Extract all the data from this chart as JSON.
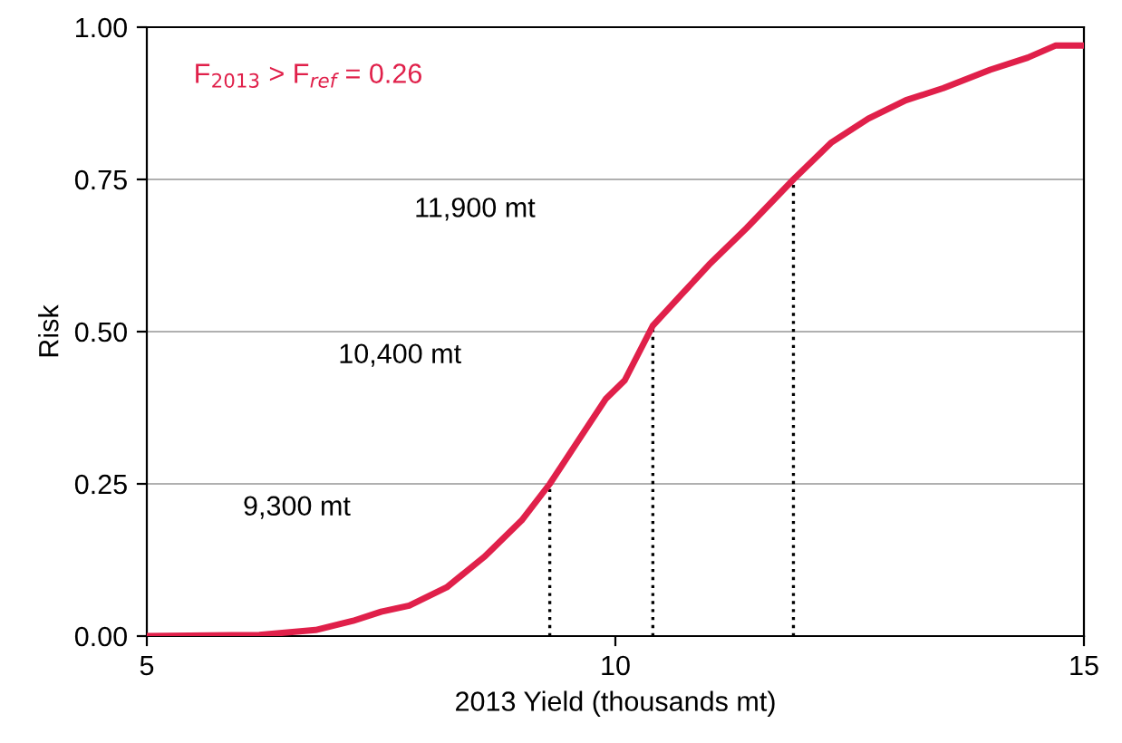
{
  "chart_data": {
    "type": "line",
    "xlabel": "2013 Yield (thousands mt)",
    "ylabel": "Risk",
    "xlim": [
      5,
      15
    ],
    "xticks": [
      5,
      10,
      15
    ],
    "ylim": [
      0,
      1
    ],
    "yticks": [
      {
        "value": 0,
        "label": "0.00"
      },
      {
        "value": 0.25,
        "label": "0.25"
      },
      {
        "value": 0.5,
        "label": "0.50"
      },
      {
        "value": 0.75,
        "label": "0.75"
      },
      {
        "value": 1,
        "label": "1.00"
      }
    ],
    "grid": "y",
    "line_style": "solid",
    "marker": "none",
    "series": [
      {
        "color": "#e0204a",
        "x": [
          5,
          6.2,
          6.8,
          7.2,
          7.5,
          7.8,
          8.2,
          8.6,
          9.0,
          9.3,
          9.6,
          9.9,
          10.1,
          10.4,
          10.7,
          11.0,
          11.4,
          11.9,
          12.3,
          12.7,
          13.1,
          13.5,
          14.0,
          14.4,
          14.7,
          15
        ],
        "values": [
          0,
          0.002,
          0.01,
          0.025,
          0.04,
          0.05,
          0.08,
          0.13,
          0.19,
          0.25,
          0.32,
          0.39,
          0.42,
          0.51,
          0.56,
          0.61,
          0.67,
          0.75,
          0.81,
          0.85,
          0.88,
          0.9,
          0.93,
          0.95,
          0.97,
          0.97
        ]
      },
      {
        "color": "#000000",
        "line_style": "dotted",
        "x": [
          9.3,
          9.3
        ],
        "values": [
          0,
          0.25
        ]
      },
      {
        "color": "#000000",
        "line_style": "dotted",
        "x": [
          10.4,
          10.4
        ],
        "values": [
          0,
          0.51
        ]
      },
      {
        "color": "#000000",
        "line_style": "dotted",
        "x": [
          11.9,
          11.9
        ],
        "values": [
          0,
          0.75
        ]
      }
    ],
    "annotations": [
      "F$_{2013}$ > F$_{ref}$ = 0.26",
      "11,900 mt",
      "10,400 mt",
      "9,300 mt"
    ]
  }
}
